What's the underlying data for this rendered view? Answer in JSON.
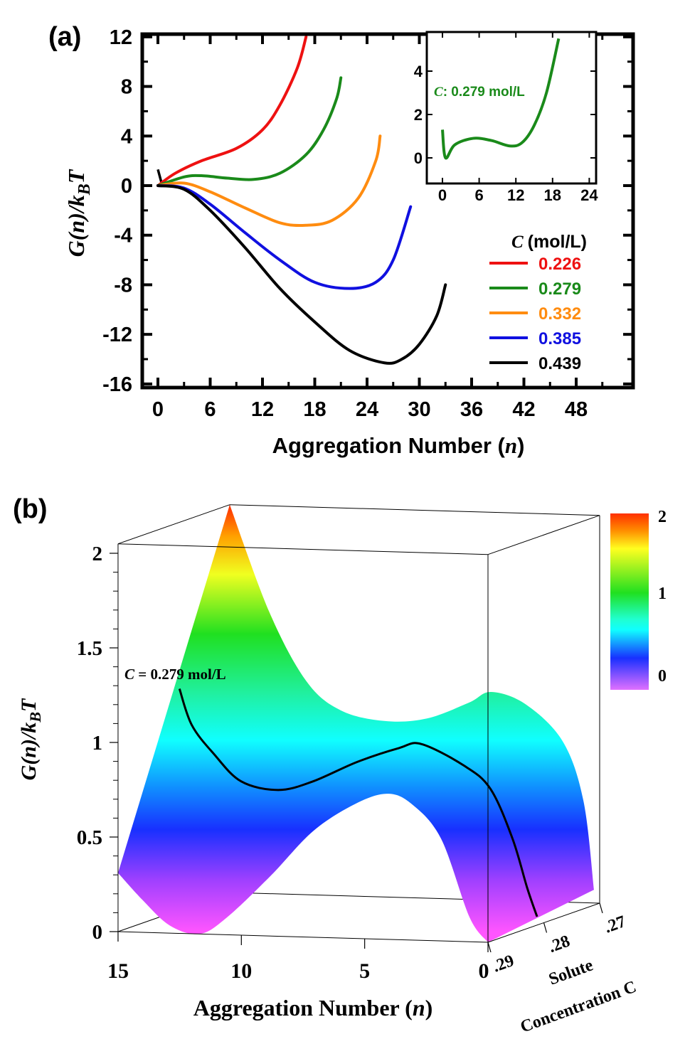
{
  "colors": {
    "red": "#ee1111",
    "green": "#1a8a1a",
    "orange": "#ff8c10",
    "blue": "#1010e0",
    "black": "#000000"
  },
  "chart_data": [
    {
      "panel": "(a)",
      "type": "line",
      "xlabel_parts": [
        "Aggregation Number (",
        "n",
        ")"
      ],
      "ylabel_parts": [
        "G(",
        "n",
        ")/k",
        "B",
        "T"
      ],
      "xlim": [
        -1.5,
        54
      ],
      "ylim": [
        -16,
        12
      ],
      "xticks": [
        0,
        6,
        12,
        18,
        24,
        30,
        36,
        42,
        48
      ],
      "yticks": [
        12,
        8,
        4,
        0,
        -4,
        -8,
        -12,
        -16
      ],
      "legend": {
        "title_var": "C",
        "title_unit": "(mol/L)",
        "placement": "right"
      },
      "series": [
        {
          "name": "0.226",
          "color": "#ee1111",
          "x": [
            0,
            2,
            5,
            9,
            12,
            14,
            16,
            17
          ],
          "y": [
            0,
            1,
            2,
            3,
            4.5,
            6.5,
            9.5,
            12
          ]
        },
        {
          "name": "0.279",
          "color": "#1a8a1a",
          "x": [
            0,
            3,
            5,
            8,
            11,
            14,
            17,
            19,
            20.5,
            21
          ],
          "y": [
            0,
            0.7,
            0.8,
            0.6,
            0.5,
            1,
            2.5,
            4.5,
            7,
            8.7
          ]
        },
        {
          "name": "0.332",
          "color": "#ff8c10",
          "x": [
            0,
            3,
            6,
            10,
            14,
            17,
            20,
            23,
            25,
            25.5
          ],
          "y": [
            0,
            0.2,
            -0.5,
            -1.8,
            -3,
            -3.2,
            -2.8,
            -1,
            2,
            4
          ]
        },
        {
          "name": "0.385",
          "color": "#1010e0",
          "x": [
            0,
            3,
            6,
            10,
            14,
            18,
            22,
            25,
            27,
            29
          ],
          "y": [
            0,
            -0.2,
            -1.5,
            -3.8,
            -6,
            -7.8,
            -8.3,
            -7.8,
            -6,
            -1.7
          ]
        },
        {
          "name": "0.439",
          "color": "#000000",
          "x": [
            0,
            3,
            6,
            10,
            14,
            18,
            22,
            26,
            28,
            30,
            32,
            33
          ],
          "y": [
            0,
            -0.3,
            -2,
            -5,
            -8.3,
            -11,
            -13.3,
            -14.3,
            -14,
            -12.8,
            -10.5,
            -8
          ]
        }
      ],
      "initial_spike": {
        "x": [
          0,
          0.5
        ],
        "y": [
          1.3,
          0
        ]
      }
    },
    {
      "panel": "(a) inset",
      "type": "line",
      "xlim": [
        -2.5,
        25
      ],
      "ylim": [
        -1.2,
        5.8
      ],
      "xticks": [
        0,
        6,
        12,
        18,
        24
      ],
      "yticks": [
        4,
        2,
        0
      ],
      "annotation_var": "C",
      "annotation_text": ": 0.279 mol/L",
      "series": [
        {
          "color": "#1a8a1a",
          "x": [
            0,
            0.5,
            2,
            5,
            8,
            11,
            13,
            15,
            17,
            19
          ],
          "y": [
            1.3,
            0,
            0.6,
            0.9,
            0.8,
            0.55,
            0.7,
            1.5,
            3,
            5.5
          ]
        }
      ]
    },
    {
      "panel": "(b)",
      "type": "surface",
      "xlabel_parts": [
        "Aggregation Number (",
        "n",
        ")"
      ],
      "ylabel_parts": [
        "G(",
        "n",
        ")/k",
        "B",
        "T"
      ],
      "zlabel_lines": [
        "Solute",
        "Concentration C"
      ],
      "xticks": [
        15,
        10,
        5,
        0
      ],
      "yticks": [
        0,
        0.5,
        1,
        1.5,
        2
      ],
      "ytick_labels": [
        "0",
        "0.5",
        "1",
        "1.5",
        "2"
      ],
      "cticks": [
        0.29,
        0.28,
        0.27
      ],
      "ctick_labels": [
        ".29",
        ".28",
        ".27"
      ],
      "xlim": [
        15,
        0
      ],
      "ylim": [
        0,
        2.05
      ],
      "clim": [
        0.29,
        0.27
      ],
      "colorbar": {
        "ticks": [
          "2",
          "1",
          "0"
        ],
        "range": [
          0,
          2
        ],
        "colormap": "rainbow (magenta-blue-cyan-green-yellow-red)"
      },
      "surface_edges": {
        "front_C_0.29": {
          "n": [
            15,
            14,
            12.9,
            11.7,
            10.6,
            8.8,
            7.1,
            5.4,
            4.1,
            3.1,
            1.9,
            0.75,
            0
          ],
          "G": [
            0.31,
            0.17,
            0.04,
            0,
            0.09,
            0.32,
            0.56,
            0.71,
            0.77,
            0.72,
            0.54,
            0.13,
            0
          ]
        },
        "back_C_0.27": {
          "n": [
            15,
            13.4,
            11.9,
            10.5,
            8.7,
            7,
            5.3,
            4.4,
            3,
            1.5,
            0.66,
            0.23
          ],
          "G": [
            2.05,
            1.49,
            1.13,
            0.98,
            0.93,
            0.95,
            1.04,
            1.1,
            1.04,
            0.85,
            0.54,
            0.07
          ]
        }
      },
      "highlight_curve": {
        "label_var": "C",
        "label_text": " = 0.279 mol/L",
        "C": 0.279,
        "n": [
          15,
          14.5,
          13.6,
          12.5,
          11,
          9.6,
          7.8,
          6.1,
          5.2,
          3.5,
          2.4,
          1.5,
          0.9,
          0.5
        ],
        "G": [
          1.17,
          0.98,
          0.83,
          0.69,
          0.65,
          0.7,
          0.81,
          0.89,
          0.915,
          0.81,
          0.69,
          0.43,
          0.17,
          0.02
        ]
      }
    }
  ]
}
